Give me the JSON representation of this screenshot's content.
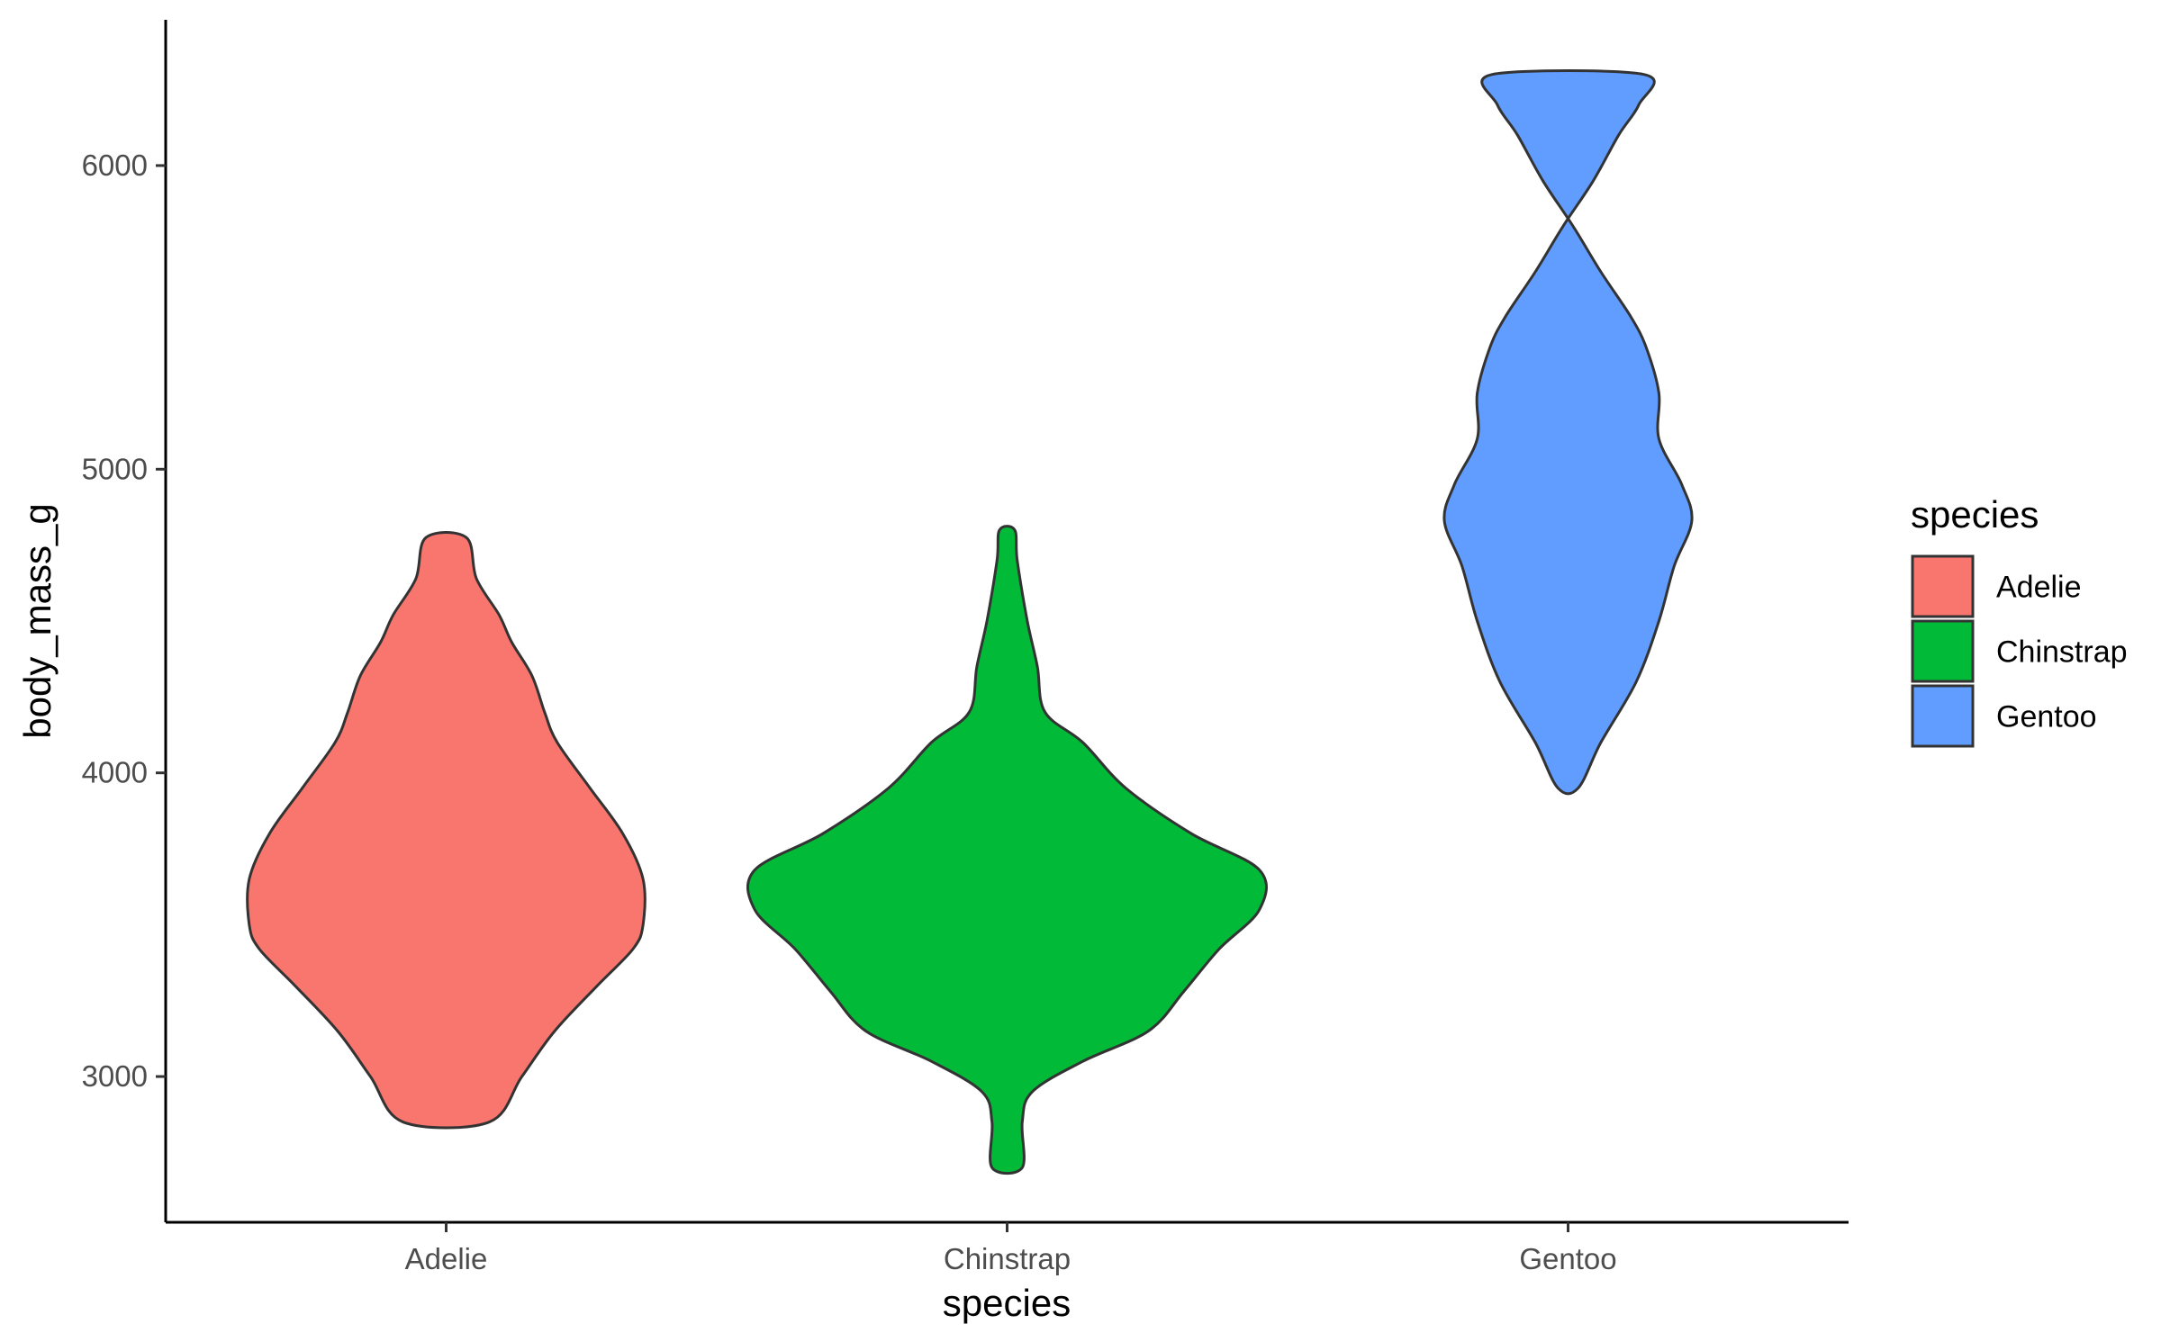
{
  "chart_data": {
    "type": "violin",
    "xlabel": "species",
    "ylabel": "body_mass_g",
    "categories": [
      "Adelie",
      "Chinstrap",
      "Gentoo"
    ],
    "yticks": [
      3000,
      4000,
      5000,
      6000
    ],
    "ylim": [
      2520,
      6480
    ],
    "grid": false,
    "legend": {
      "title": "species",
      "position": "right",
      "entries": [
        "Adelie",
        "Chinstrap",
        "Gentoo"
      ]
    },
    "series": [
      {
        "name": "Adelie",
        "color": "#F8766D",
        "min": 2850,
        "max": 4775,
        "density": [
          [
            2850,
            0.17
          ],
          [
            3000,
            0.3
          ],
          [
            3150,
            0.43
          ],
          [
            3300,
            0.6
          ],
          [
            3420,
            0.74
          ],
          [
            3500,
            0.78
          ],
          [
            3650,
            0.78
          ],
          [
            3800,
            0.7
          ],
          [
            3950,
            0.57
          ],
          [
            4100,
            0.44
          ],
          [
            4200,
            0.39
          ],
          [
            4320,
            0.34
          ],
          [
            4430,
            0.26
          ],
          [
            4520,
            0.21
          ],
          [
            4640,
            0.12
          ],
          [
            4775,
            0.08
          ]
        ]
      },
      {
        "name": "Chinstrap",
        "color": "#00BA38",
        "min": 2700,
        "max": 4800,
        "density": [
          [
            2700,
            0.06
          ],
          [
            2850,
            0.06
          ],
          [
            2950,
            0.1
          ],
          [
            3050,
            0.3
          ],
          [
            3150,
            0.56
          ],
          [
            3280,
            0.7
          ],
          [
            3420,
            0.84
          ],
          [
            3550,
            1.0
          ],
          [
            3680,
            1.0
          ],
          [
            3800,
            0.73
          ],
          [
            3950,
            0.47
          ],
          [
            4100,
            0.3
          ],
          [
            4200,
            0.15
          ],
          [
            4350,
            0.12
          ],
          [
            4500,
            0.08
          ],
          [
            4700,
            0.04
          ],
          [
            4800,
            0.03
          ]
        ]
      },
      {
        "name": "Gentoo",
        "color": "#619CFF",
        "min": 3950,
        "max": 6300,
        "density": [
          [
            3950,
            0.04
          ],
          [
            4100,
            0.13
          ],
          [
            4300,
            0.27
          ],
          [
            4500,
            0.36
          ],
          [
            4680,
            0.42
          ],
          [
            4830,
            0.49
          ],
          [
            4950,
            0.45
          ],
          [
            5100,
            0.36
          ],
          [
            5250,
            0.36
          ],
          [
            5400,
            0.31
          ],
          [
            5500,
            0.25
          ],
          [
            5650,
            0.13
          ],
          [
            5800,
            0.02
          ],
          [
            5950,
            -0.1
          ],
          [
            6100,
            -0.2
          ],
          [
            6200,
            -0.28
          ],
          [
            6300,
            -0.3
          ]
        ]
      }
    ]
  }
}
